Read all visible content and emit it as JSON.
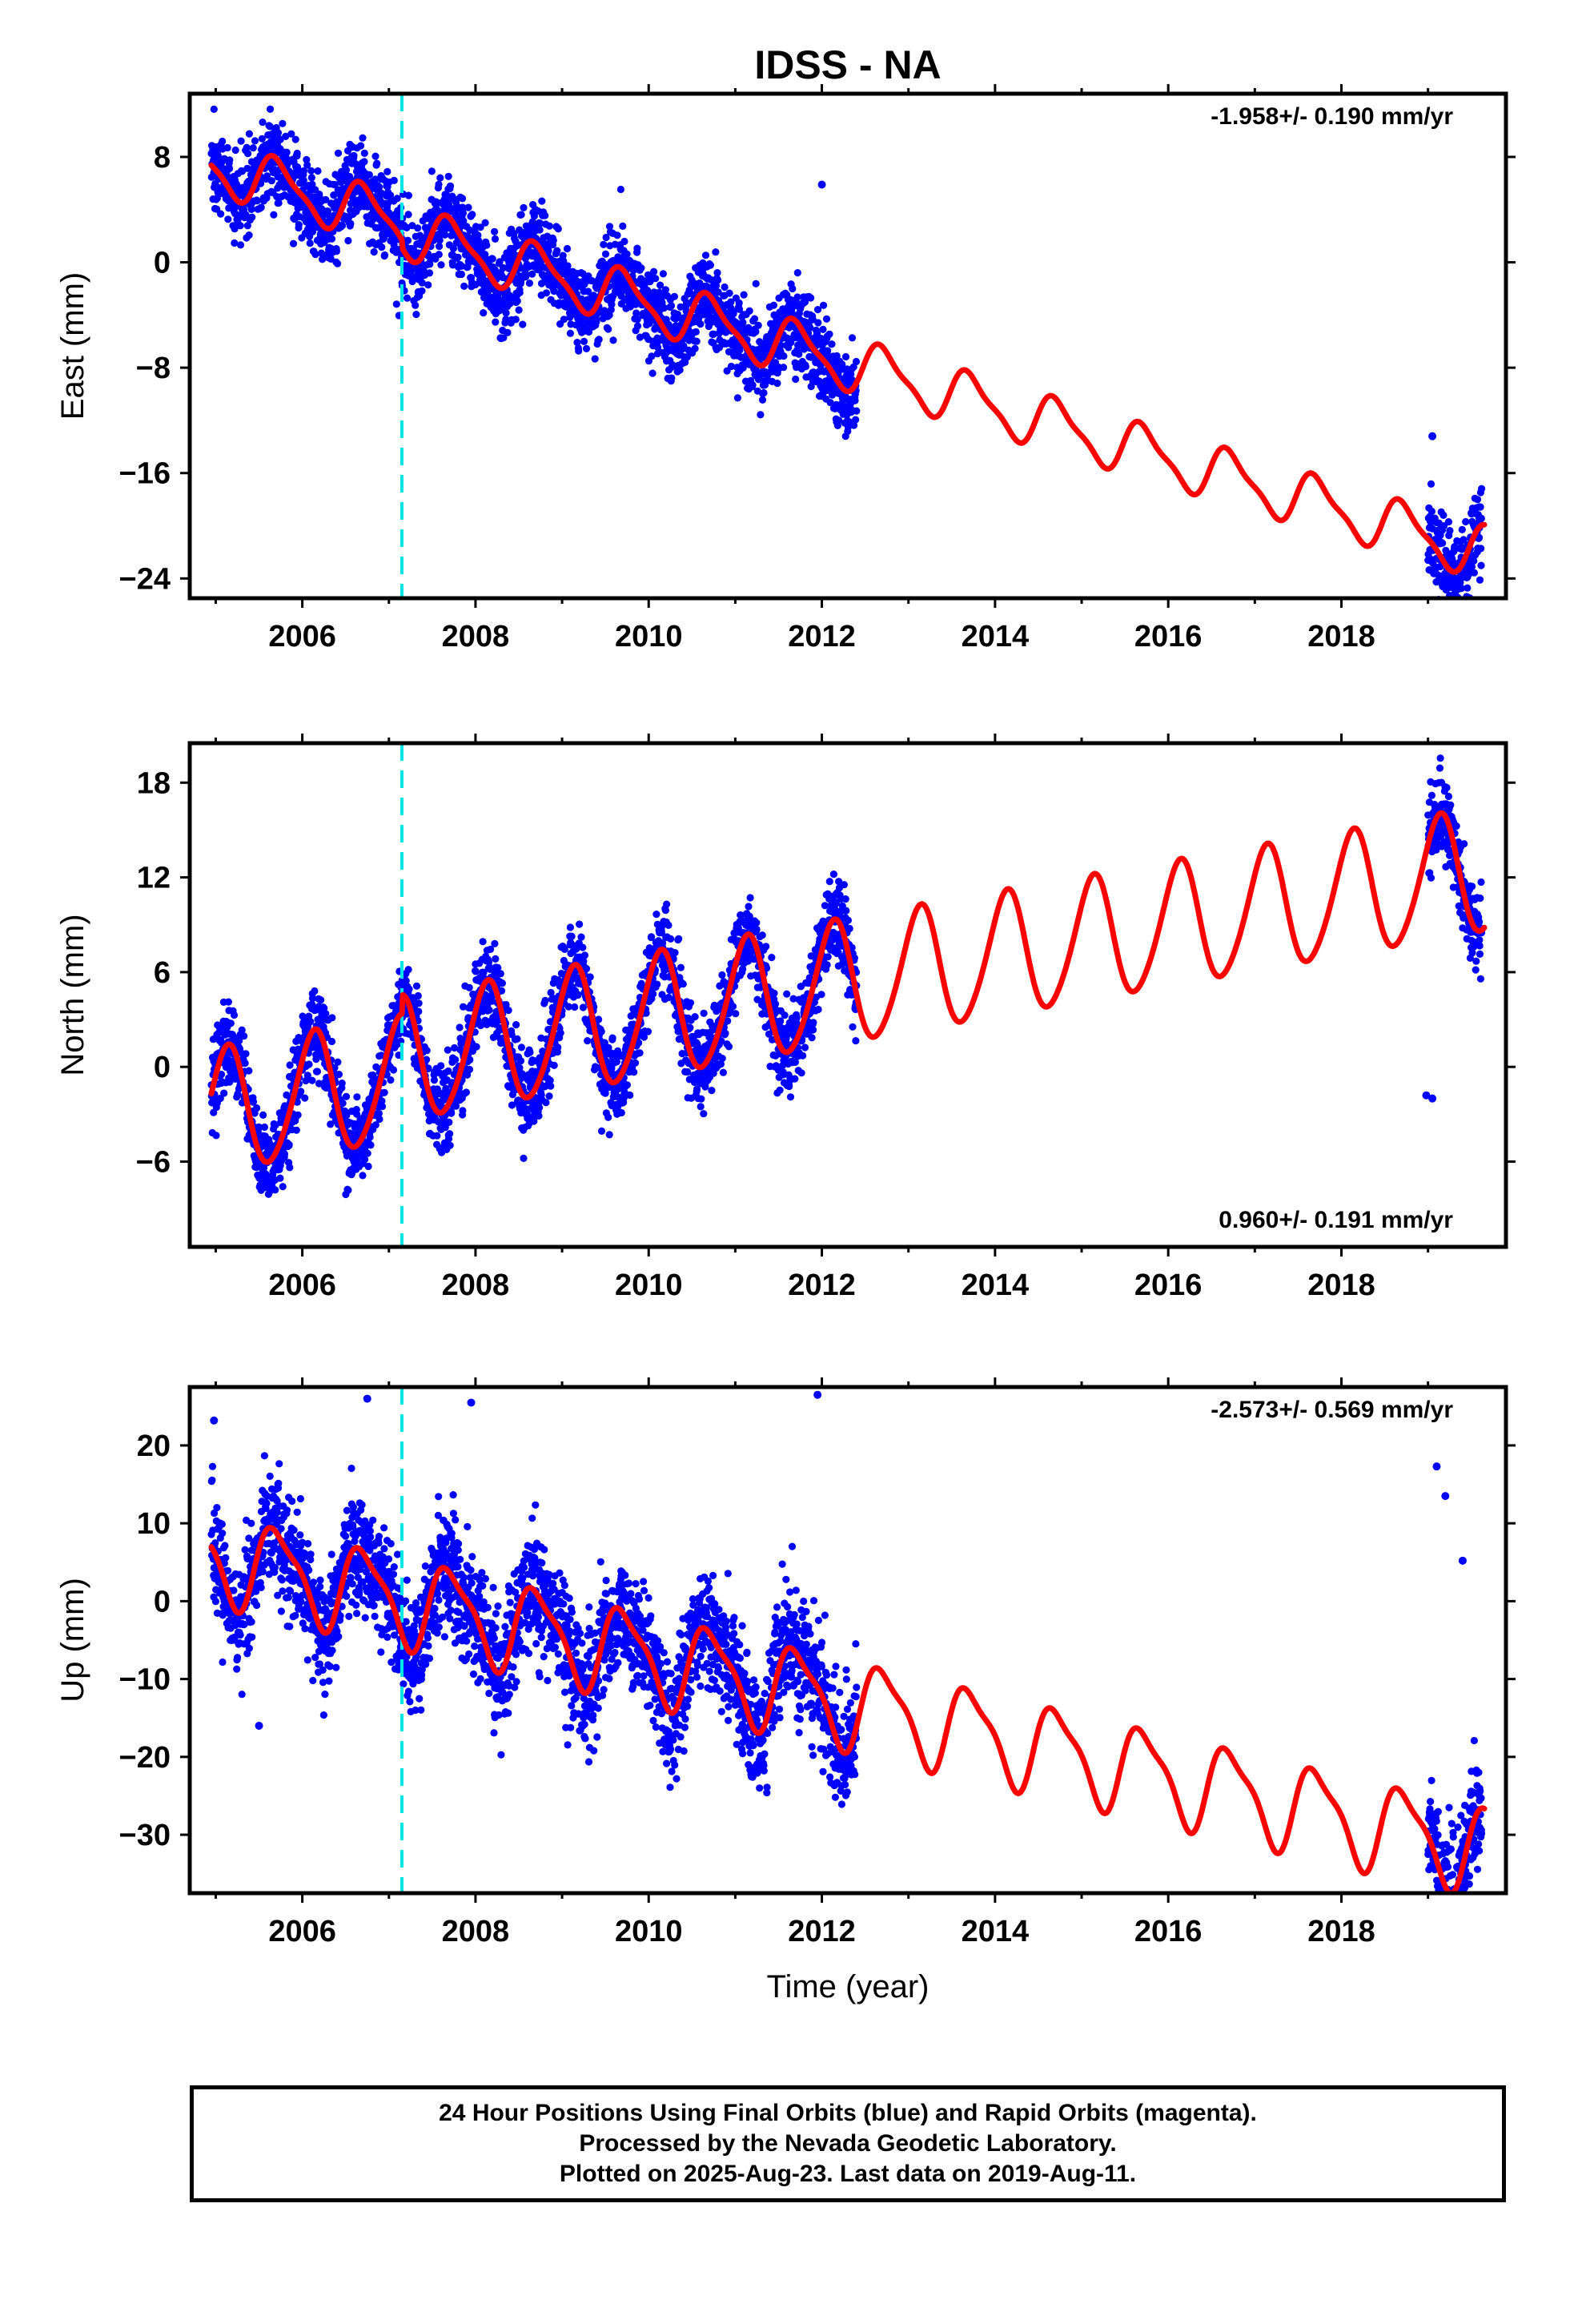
{
  "chart_data": [
    {
      "type": "scatter",
      "title": "IDSS - NA",
      "ylabel": "East (mm)",
      "xlabel": "",
      "xlim": [
        2004.7,
        2019.9
      ],
      "ylim": [
        -25.5,
        12.8
      ],
      "xticks": [
        2006,
        2008,
        2010,
        2012,
        2014,
        2016,
        2018
      ],
      "yticks": [
        8,
        0,
        -8,
        -16,
        -24
      ],
      "rate_text": "-1.958+/- 0.190 mm/yr",
      "rate_position": "top-right",
      "offset_epoch": 2007.15,
      "grid": false,
      "model": {
        "rate": -1.958,
        "intercept_year": 2005.0,
        "intercept": 7.2,
        "annual_amp": 1.9,
        "annual_phase": 0.72,
        "semiannual_amp": 0.55,
        "semiannual_phase": 0.1,
        "offset_at_epoch": -0.6,
        "noise_sd": 1.6
      },
      "observation_spans": [
        [
          2004.95,
          2012.4
        ],
        [
          2019.0,
          2019.62
        ]
      ],
      "outliers": [
        [
          2012.0,
          5.9
        ],
        [
          2019.05,
          -13.2
        ]
      ],
      "series": [
        {
          "name": "Final Orbits",
          "kind": "points",
          "color": "#0000ff"
        },
        {
          "name": "Model fit",
          "kind": "line",
          "color": "#ff0000"
        }
      ]
    },
    {
      "type": "scatter",
      "title": "",
      "ylabel": "North (mm)",
      "xlabel": "",
      "xlim": [
        2004.7,
        2019.9
      ],
      "ylim": [
        -11.4,
        20.5
      ],
      "xticks": [
        2006,
        2008,
        2010,
        2012,
        2014,
        2016,
        2018
      ],
      "yticks": [
        18,
        12,
        6,
        0,
        -6
      ],
      "rate_text": "0.960+/- 0.191 mm/yr",
      "rate_position": "bottom-right",
      "offset_epoch": 2007.15,
      "grid": false,
      "model": {
        "rate": 0.96,
        "intercept_year": 2005.0,
        "intercept": -2.9,
        "annual_amp": 3.9,
        "annual_phase": 0.13,
        "semiannual_amp": 0.4,
        "semiannual_phase": 0.2,
        "offset_at_epoch": 1.2,
        "noise_sd": 1.3
      },
      "observation_spans": [
        [
          2004.95,
          2012.4
        ],
        [
          2019.0,
          2019.62
        ]
      ],
      "outliers": [
        [
          2018.98,
          -1.8
        ],
        [
          2019.05,
          -2.0
        ]
      ],
      "series": [
        {
          "name": "Final Orbits",
          "kind": "points",
          "color": "#0000ff"
        },
        {
          "name": "Model fit",
          "kind": "line",
          "color": "#ff0000"
        }
      ]
    },
    {
      "type": "scatter",
      "title": "",
      "ylabel": "Up (mm)",
      "xlabel": "Time (year)",
      "xlim": [
        2004.7,
        2019.9
      ],
      "ylim": [
        -37.5,
        27.5
      ],
      "xticks": [
        2006,
        2008,
        2010,
        2012,
        2014,
        2016,
        2018
      ],
      "yticks": [
        20,
        10,
        0,
        -10,
        -20,
        -30
      ],
      "rate_text": "-2.573+/- 0.569 mm/yr",
      "rate_position": "top-right",
      "offset_epoch": 2007.15,
      "grid": false,
      "model": {
        "rate": -2.573,
        "intercept_year": 2005.0,
        "intercept": 5.7,
        "annual_amp": 5.4,
        "annual_phase": 0.72,
        "semiannual_amp": 1.5,
        "semiannual_phase": 0.05,
        "offset_at_epoch": 0.0,
        "noise_sd": 3.8
      },
      "observation_spans": [
        [
          2004.95,
          2012.4
        ],
        [
          2019.0,
          2019.62
        ]
      ],
      "outliers": [
        [
          2004.98,
          23.2
        ],
        [
          2005.5,
          -16.0
        ],
        [
          2006.75,
          26.0
        ],
        [
          2007.95,
          25.5
        ],
        [
          2011.95,
          26.5
        ],
        [
          2019.1,
          17.3
        ],
        [
          2019.4,
          5.2
        ],
        [
          2019.2,
          13.5
        ],
        [
          2019.42,
          -36.8
        ]
      ],
      "series": [
        {
          "name": "Final Orbits",
          "kind": "points",
          "color": "#0000ff"
        },
        {
          "name": "Model fit",
          "kind": "line",
          "color": "#ff0000"
        }
      ]
    }
  ],
  "caption": {
    "line1": "24 Hour Positions Using Final Orbits (blue) and Rapid Orbits (magenta).",
    "line2": "Processed by the Nevada Geodetic Laboratory.",
    "line3": "Plotted on 2025-Aug-23. Last data on 2019-Aug-11."
  },
  "colors": {
    "points": "#0000ff",
    "model": "#ff0000",
    "offset_marker": "#00e5e5",
    "frame": "#000000"
  }
}
